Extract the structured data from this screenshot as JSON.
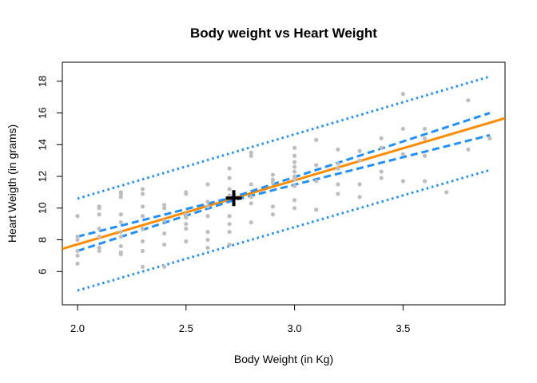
{
  "chart_data": {
    "type": "scatter",
    "title": "Body weight vs Heart Weight",
    "xlabel": "Body Weight (in Kg)",
    "ylabel": "Heart Weigth (in grams)",
    "xlim": [
      1.93,
      3.97
    ],
    "ylim": [
      3.9,
      19.2
    ],
    "xticks": [
      2.0,
      2.5,
      3.0,
      3.5
    ],
    "xtick_labels": [
      "2.0",
      "2.5",
      "3.0",
      "3.5"
    ],
    "yticks": [
      6,
      8,
      10,
      12,
      14,
      16,
      18
    ],
    "ytick_labels": [
      "6",
      "8",
      "10",
      "12",
      "14",
      "16",
      "18"
    ],
    "grid": false,
    "legend": "none",
    "series": [
      {
        "role": "observations",
        "color": "#bebebe",
        "x": [
          2.0,
          2.0,
          2.0,
          2.0,
          2.0,
          2.0,
          2.1,
          2.1,
          2.1,
          2.1,
          2.1,
          2.1,
          2.1,
          2.2,
          2.2,
          2.2,
          2.2,
          2.2,
          2.2,
          2.2,
          2.2,
          2.2,
          2.2,
          2.3,
          2.3,
          2.3,
          2.3,
          2.3,
          2.3,
          2.3,
          2.3,
          2.4,
          2.4,
          2.4,
          2.4,
          2.4,
          2.4,
          2.5,
          2.5,
          2.5,
          2.5,
          2.5,
          2.5,
          2.5,
          2.6,
          2.6,
          2.6,
          2.6,
          2.6,
          2.6,
          2.6,
          2.7,
          2.7,
          2.7,
          2.7,
          2.7,
          2.7,
          2.7,
          2.7,
          2.8,
          2.8,
          2.8,
          2.8,
          2.8,
          2.8,
          2.9,
          2.9,
          2.9,
          2.9,
          2.9,
          3.0,
          3.0,
          3.0,
          3.0,
          3.0,
          3.0,
          3.0,
          3.0,
          3.0,
          3.0,
          3.1,
          3.1,
          3.1,
          3.1,
          3.2,
          3.2,
          3.2,
          3.2,
          3.2,
          3.3,
          3.3,
          3.3,
          3.3,
          3.4,
          3.4,
          3.4,
          3.4,
          3.5,
          3.5,
          3.5,
          3.5,
          3.6,
          3.6,
          3.6,
          3.6,
          3.7,
          3.8,
          3.8,
          3.9
        ],
        "y": [
          6.5,
          7.0,
          7.3,
          8.0,
          8.2,
          9.5,
          7.3,
          7.5,
          8.7,
          9.6,
          10.0,
          10.1,
          8.2,
          7.1,
          7.2,
          7.6,
          8.2,
          8.5,
          9.1,
          9.6,
          10.7,
          10.9,
          11.0,
          6.3,
          7.3,
          7.9,
          8.7,
          9.5,
          10.1,
          10.9,
          11.2,
          6.3,
          7.7,
          8.4,
          9.2,
          10.0,
          10.2,
          7.9,
          8.7,
          9.0,
          9.4,
          9.6,
          10.9,
          11.0,
          7.5,
          8.0,
          8.5,
          9.5,
          10.1,
          10.4,
          11.5,
          7.7,
          8.5,
          9.0,
          9.5,
          10.8,
          11.2,
          11.9,
          12.5,
          9.1,
          10.3,
          10.7,
          11.5,
          13.3,
          13.5,
          9.6,
          10.1,
          11.6,
          11.8,
          12.1,
          10.0,
          10.5,
          11.8,
          12.0,
          12.3,
          12.6,
          12.9,
          13.3,
          13.8,
          11.4,
          9.9,
          11.7,
          12.7,
          14.3,
          10.9,
          11.5,
          12.5,
          12.8,
          13.7,
          10.7,
          11.5,
          13.0,
          13.6,
          11.9,
          12.3,
          13.8,
          14.4,
          11.7,
          13.4,
          15.0,
          17.2,
          11.7,
          13.3,
          14.4,
          15.0,
          11.0,
          13.7,
          16.8,
          14.4
        ]
      },
      {
        "role": "regression-line",
        "color": "#ff8c00",
        "x": [
          1.93,
          3.97
        ],
        "y": [
          7.43,
          15.67
        ]
      },
      {
        "role": "confidence-band-upper",
        "color": "#1e90ff",
        "x": [
          2.0,
          2.72,
          3.9
        ],
        "y": [
          8.2,
          10.7,
          16.0
        ]
      },
      {
        "role": "confidence-band-lower",
        "color": "#1e90ff",
        "x": [
          2.0,
          2.72,
          3.9
        ],
        "y": [
          7.3,
          10.5,
          14.6
        ]
      },
      {
        "role": "prediction-band-upper",
        "color": "#1e90ff",
        "x": [
          2.0,
          3.9
        ],
        "y": [
          10.6,
          18.3
        ]
      },
      {
        "role": "prediction-band-lower",
        "color": "#1e90ff",
        "x": [
          2.0,
          3.9
        ],
        "y": [
          4.8,
          12.4
        ]
      }
    ],
    "mean_point": {
      "x": 2.72,
      "y": 10.63,
      "marker": "plus",
      "color": "#000000"
    }
  }
}
